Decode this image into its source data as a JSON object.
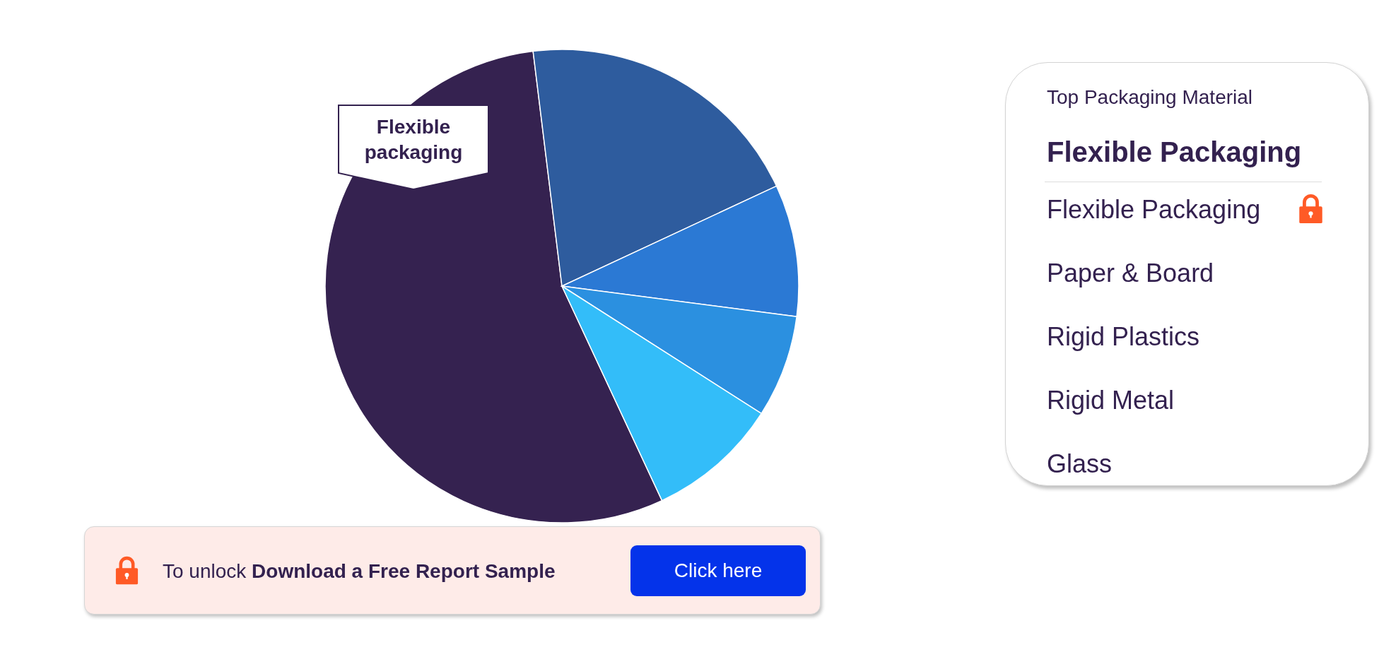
{
  "chart_data": {
    "type": "pie",
    "categories": [
      "Flexible packaging",
      null,
      null,
      null,
      null
    ],
    "values": [
      55,
      20,
      9,
      7,
      9
    ],
    "colors": [
      "#352250",
      "#2e5c9e",
      "#2b79d4",
      "#2b90e0",
      "#33bdf9"
    ],
    "annotations": [
      "Top Packaging Material",
      "Flexible Packaging",
      "Flexible Packaging",
      "Paper & Board",
      "Rigid Plastics",
      "Rigid Metal",
      "Glass",
      "To unlock",
      "Download a Free Report Sample",
      "Click here"
    ]
  }
}
